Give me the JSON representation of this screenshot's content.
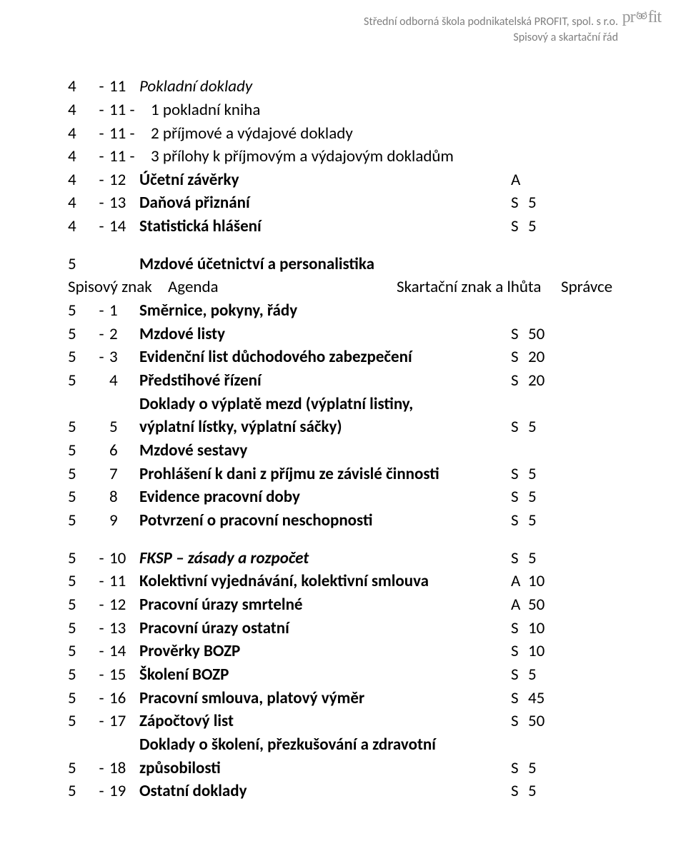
{
  "header": {
    "line1": "Střední odborná škola podnikatelská PROFIT, spol. s r.o.",
    "line2": "Spisový a skartační řád",
    "logo_text_left": "pr",
    "logo_text_right": "fit"
  },
  "section1_rows": [
    {
      "a": "4",
      "sep": "-",
      "b": "11",
      "agenda": "Pokladní doklady",
      "mark": "",
      "num": "",
      "style": "italic"
    },
    {
      "a": "4",
      "sep": "-",
      "b": "11 -",
      "agenda": "1 pokladní kniha",
      "mark": "",
      "num": "",
      "style": "plain",
      "sub": true
    },
    {
      "a": "4",
      "sep": "-",
      "b": "11 -",
      "agenda": "2 příjmové a výdajové doklady",
      "mark": "",
      "num": "",
      "style": "plain",
      "sub": true
    },
    {
      "a": "4",
      "sep": "-",
      "b": "11 -",
      "agenda": "3 přílohy k příjmovým a výdajovým dokladům",
      "mark": "",
      "num": "",
      "style": "plain",
      "sub": true
    },
    {
      "a": "4",
      "sep": "-",
      "b": "12",
      "agenda": "Účetní závěrky",
      "mark": "A",
      "num": "",
      "style": "bold"
    },
    {
      "a": "4",
      "sep": "-",
      "b": "13",
      "agenda": "Daňová přiznání",
      "mark": "S",
      "num": "5",
      "style": "bold"
    },
    {
      "a": "4",
      "sep": "-",
      "b": "14",
      "agenda": "Statistická hlášení",
      "mark": "S",
      "num": "5",
      "style": "bold"
    }
  ],
  "section2_header": {
    "a": "5",
    "agenda": "Mzdové účetnictví a personalistika"
  },
  "spis_row": {
    "label": "Spisový znak",
    "agenda": "Agenda",
    "skart": "Skartační znak a lhůta",
    "spravce": "Správce"
  },
  "section2_rows": [
    {
      "a": "5",
      "sep": "-",
      "b": "1",
      "agenda": "Směrnice, pokyny, řády",
      "mark": "",
      "num": "",
      "style": "bold"
    },
    {
      "a": "5",
      "sep": "-",
      "b": "2",
      "agenda": "Mzdové listy",
      "mark": "S",
      "num": "50",
      "style": "bold"
    },
    {
      "a": "5",
      "sep": "-",
      "b": "3",
      "agenda": "Evidenční list důchodového zabezpečení",
      "mark": "S",
      "num": "20",
      "style": "bold"
    },
    {
      "a": "5",
      "sep": "",
      "b": "4",
      "agenda": "Předstihové řízení",
      "mark": "S",
      "num": "20",
      "style": "bold"
    },
    {
      "a": "",
      "sep": "",
      "b": "",
      "agenda": "Doklady o výplatě mezd (výplatní listiny,",
      "mark": "",
      "num": "",
      "style": "bold"
    },
    {
      "a": "5",
      "sep": "",
      "b": "5",
      "agenda": "výplatní lístky, výplatní sáčky)",
      "mark": "S",
      "num": "5",
      "style": "bold"
    },
    {
      "a": "5",
      "sep": "",
      "b": "6",
      "agenda": "Mzdové sestavy",
      "mark": "",
      "num": "",
      "style": "bold"
    },
    {
      "a": "5",
      "sep": "",
      "b": "7",
      "agenda": "Prohlášení k dani z příjmu ze závislé činnosti",
      "mark": "S",
      "num": "5",
      "style": "bold"
    },
    {
      "a": "5",
      "sep": "",
      "b": "8",
      "agenda": "Evidence pracovní doby",
      "mark": "S",
      "num": "5",
      "style": "bold"
    },
    {
      "a": "5",
      "sep": "",
      "b": "9",
      "agenda": "Potvrzení o pracovní neschopnosti",
      "mark": "S",
      "num": "5",
      "style": "bold"
    }
  ],
  "section3_rows": [
    {
      "a": "5",
      "sep": "-",
      "b": "10",
      "agenda": "FKSP – zásady a rozpočet",
      "mark": "S",
      "num": "5",
      "style": "boldital"
    },
    {
      "a": "5",
      "sep": "-",
      "b": "11",
      "agenda": "Kolektivní vyjednávání, kolektivní smlouva",
      "mark": "A",
      "num": "10",
      "style": "bold"
    },
    {
      "a": "5",
      "sep": "-",
      "b": "12",
      "agenda": "Pracovní úrazy smrtelné",
      "mark": "A",
      "num": "50",
      "style": "bold"
    },
    {
      "a": "5",
      "sep": "-",
      "b": "13",
      "agenda": "Pracovní úrazy ostatní",
      "mark": "S",
      "num": "10",
      "style": "bold"
    },
    {
      "a": "5",
      "sep": "-",
      "b": "14",
      "agenda": "Prověrky BOZP",
      "mark": "S",
      "num": "10",
      "style": "bold"
    },
    {
      "a": "5",
      "sep": "-",
      "b": "15",
      "agenda": "Školení BOZP",
      "mark": "S",
      "num": "5",
      "style": "bold"
    },
    {
      "a": "5",
      "sep": "-",
      "b": "16",
      "agenda": "Pracovní smlouva, platový výměr",
      "mark": "S",
      "num": "45",
      "style": "bold"
    },
    {
      "a": "5",
      "sep": "-",
      "b": "17",
      "agenda": "Zápočtový list",
      "mark": "S",
      "num": "50",
      "style": "bold"
    },
    {
      "a": "",
      "sep": "",
      "b": "",
      "agenda": "Doklady o školení, přezkušování a zdravotní",
      "mark": "",
      "num": "",
      "style": "bold"
    },
    {
      "a": "5",
      "sep": "-",
      "b": "18",
      "agenda": "způsobilosti",
      "mark": "S",
      "num": "5",
      "style": "bold"
    },
    {
      "a": "5",
      "sep": "-",
      "b": "19",
      "agenda": "Ostatní doklady",
      "mark": "S",
      "num": "5",
      "style": "bold"
    }
  ]
}
